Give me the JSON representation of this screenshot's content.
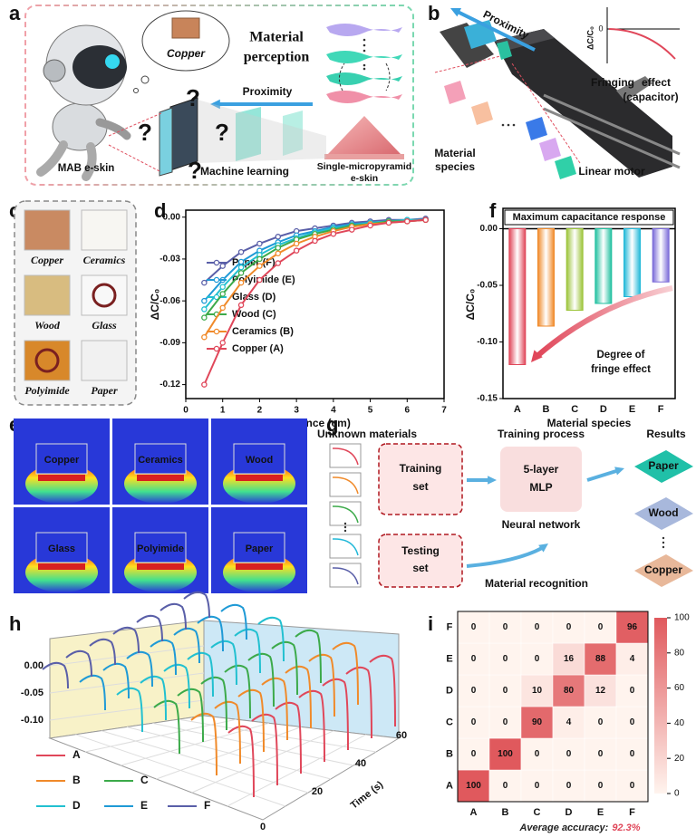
{
  "panel_labels": [
    "a",
    "b",
    "c",
    "d",
    "e",
    "f",
    "g",
    "h",
    "i"
  ],
  "panel_a": {
    "cloud": "Copper",
    "title": [
      "Material",
      "perception"
    ],
    "arrow": "Proximity",
    "skin": "MAB e-skin",
    "ml": "Machine learning",
    "sensor": [
      "Single-micropyramid",
      "e-skin"
    ],
    "question_mark": "?"
  },
  "panel_b": {
    "arrow": "Proximity",
    "inset_ylabel": "ΔC/C₀",
    "inset_zero": "0",
    "fringe": [
      "Fringing",
      "effect",
      "(capacitor)"
    ],
    "species": [
      "Material",
      "species"
    ],
    "motor": "Linear motor"
  },
  "panel_c": {
    "materials": [
      "Copper",
      "Ceramics",
      "Wood",
      "Glass",
      "Polyimide",
      "Paper"
    ]
  },
  "panel_e": {
    "materials": [
      "Copper",
      "Ceramics",
      "Wood",
      "Glass",
      "Polyimide",
      "Paper"
    ]
  },
  "panel_g": {
    "headers": [
      "Unknown materials",
      "Training process",
      "Results"
    ],
    "training": [
      "Training",
      "set"
    ],
    "testing": [
      "Testing",
      "set"
    ],
    "mlp": [
      "5-layer",
      "MLP"
    ],
    "network": "Neural network",
    "recognition": "Material recognition",
    "results": [
      "Paper",
      "Wood",
      "Copper"
    ]
  },
  "panel_h": {
    "series": [
      {
        "name": "A",
        "color": "#e0475a"
      },
      {
        "name": "B",
        "color": "#f08a2a"
      },
      {
        "name": "C",
        "color": "#3caa4a"
      },
      {
        "name": "D",
        "color": "#22c0d0"
      },
      {
        "name": "E",
        "color": "#1f9ad6"
      },
      {
        "name": "F",
        "color": "#5a5fa8"
      }
    ],
    "yticks": [
      "0.00",
      "-0.05",
      "-0.10"
    ],
    "time_ticks": [
      "0",
      "20",
      "40",
      "60"
    ],
    "time_label": "Time (s)"
  },
  "chart_data": [
    {
      "type": "line",
      "xlabel": "Distance (cm)",
      "ylabel": "ΔC/C₀",
      "x": [
        0.5,
        1,
        1.5,
        2,
        2.5,
        3,
        3.5,
        4,
        4.5,
        5,
        5.5,
        6,
        6.5
      ],
      "series": [
        {
          "name": "Paper (F)",
          "color": "#5a5fa8",
          "values": [
            -0.047,
            -0.035,
            -0.025,
            -0.019,
            -0.014,
            -0.01,
            -0.008,
            -0.006,
            -0.004,
            -0.003,
            -0.002,
            -0.002,
            -0.001
          ]
        },
        {
          "name": "Polyimide (E)",
          "color": "#1f9ad6",
          "values": [
            -0.06,
            -0.045,
            -0.032,
            -0.024,
            -0.018,
            -0.013,
            -0.01,
            -0.007,
            -0.005,
            -0.004,
            -0.003,
            -0.002,
            -0.002
          ]
        },
        {
          "name": "Glass (D)",
          "color": "#22c0d0",
          "values": [
            -0.066,
            -0.05,
            -0.036,
            -0.027,
            -0.02,
            -0.015,
            -0.011,
            -0.008,
            -0.006,
            -0.004,
            -0.003,
            -0.002,
            -0.002
          ]
        },
        {
          "name": "Wood (C)",
          "color": "#3caa4a",
          "values": [
            -0.072,
            -0.055,
            -0.04,
            -0.03,
            -0.022,
            -0.016,
            -0.012,
            -0.009,
            -0.006,
            -0.005,
            -0.003,
            -0.003,
            -0.002
          ]
        },
        {
          "name": "Ceramics (B)",
          "color": "#f08a2a",
          "values": [
            -0.086,
            -0.065,
            -0.047,
            -0.035,
            -0.026,
            -0.019,
            -0.014,
            -0.01,
            -0.007,
            -0.005,
            -0.004,
            -0.003,
            -0.002
          ]
        },
        {
          "name": "Copper (A)",
          "color": "#e0475a",
          "values": [
            -0.12,
            -0.09,
            -0.063,
            -0.045,
            -0.033,
            -0.024,
            -0.017,
            -0.012,
            -0.009,
            -0.006,
            -0.004,
            -0.003,
            -0.002
          ]
        }
      ],
      "xlim": [
        0,
        7
      ],
      "xticks": [
        0,
        1,
        2,
        3,
        4,
        5,
        6,
        7
      ],
      "ylim": [
        -0.13,
        0.005
      ],
      "yticks": [
        {
          "value": 0,
          "label": "0.00"
        },
        {
          "value": -0.03,
          "label": "-0.03"
        },
        {
          "value": -0.06,
          "label": "-0.06"
        },
        {
          "value": -0.09,
          "label": "-0.09"
        },
        {
          "value": -0.12,
          "label": "-0.12"
        }
      ]
    },
    {
      "type": "bar",
      "title": "Maximum capacitance response",
      "xlabel": "Material species",
      "ylabel": "ΔC/C₀",
      "annotation": [
        "Degree of",
        "fringe effect"
      ],
      "categories": [
        "A",
        "B",
        "C",
        "D",
        "E",
        "F"
      ],
      "values": [
        -0.12,
        -0.086,
        -0.072,
        -0.066,
        -0.06,
        -0.047
      ],
      "colors": [
        "#e0475a",
        "#f08a2a",
        "#9cc43a",
        "#22c0a0",
        "#22b8d8",
        "#7a6ad8"
      ],
      "ylim": [
        -0.15,
        0.018
      ],
      "yticks": [
        {
          "value": 0,
          "label": "0.00"
        },
        {
          "value": -0.05,
          "label": "-0.05"
        },
        {
          "value": -0.1,
          "label": "-0.10"
        },
        {
          "value": -0.15,
          "label": "-0.15"
        }
      ]
    },
    {
      "type": "heatmap",
      "x_categories": [
        "A",
        "B",
        "C",
        "D",
        "E",
        "F"
      ],
      "y_categories": [
        "A",
        "B",
        "C",
        "D",
        "E",
        "F"
      ],
      "values": [
        [
          100,
          0,
          0,
          0,
          0,
          0
        ],
        [
          0,
          100,
          0,
          0,
          0,
          0
        ],
        [
          0,
          0,
          90,
          4,
          0,
          0
        ],
        [
          0,
          0,
          10,
          80,
          12,
          0
        ],
        [
          0,
          0,
          0,
          16,
          88,
          4
        ],
        [
          0,
          0,
          0,
          0,
          0,
          96
        ]
      ],
      "zlim": [
        0,
        100
      ],
      "colorbar_ticks": [
        0,
        20,
        40,
        60,
        80,
        100
      ],
      "colors": [
        "#fff4ee",
        "#e0595d"
      ],
      "caption": "Average accuracy:",
      "caption_value": "92.3%"
    }
  ]
}
